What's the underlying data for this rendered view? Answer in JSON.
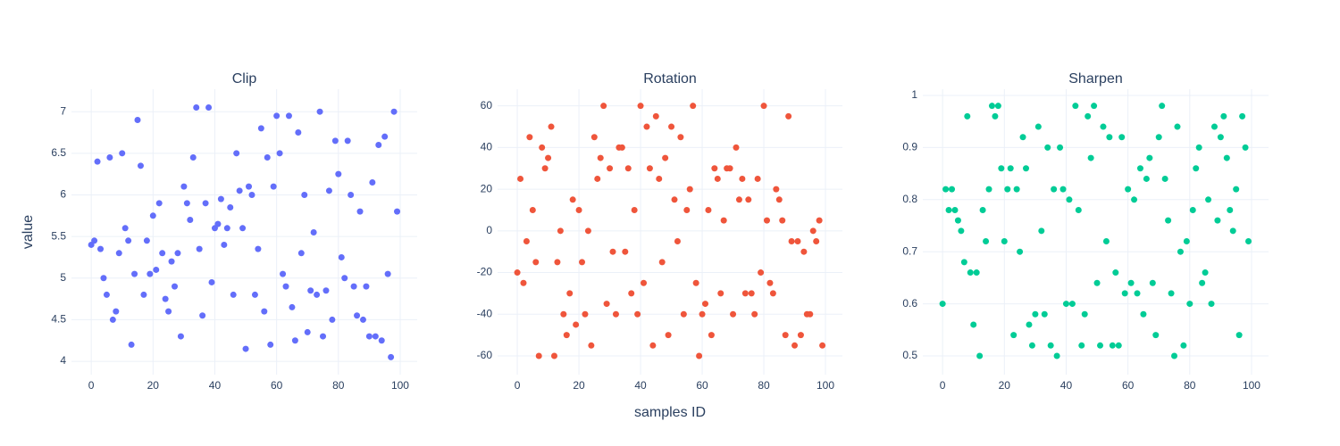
{
  "chart_data": [
    {
      "type": "scatter",
      "title": "Clip",
      "y_label": "value",
      "color": "#636efa",
      "x": [
        0,
        1,
        2,
        3,
        4,
        5,
        6,
        7,
        8,
        9,
        10,
        11,
        12,
        13,
        14,
        15,
        16,
        17,
        18,
        19,
        20,
        21,
        22,
        23,
        24,
        25,
        26,
        27,
        28,
        29,
        30,
        31,
        32,
        33,
        34,
        35,
        36,
        37,
        38,
        39,
        40,
        41,
        42,
        43,
        44,
        45,
        46,
        47,
        48,
        49,
        50,
        51,
        52,
        53,
        54,
        55,
        56,
        57,
        58,
        59,
        60,
        61,
        62,
        63,
        64,
        65,
        66,
        67,
        68,
        69,
        70,
        71,
        72,
        73,
        74,
        75,
        76,
        77,
        78,
        79,
        80,
        81,
        82,
        83,
        84,
        85,
        86,
        87,
        88,
        89,
        90,
        91,
        92,
        93,
        94,
        95,
        96,
        97,
        98,
        99
      ],
      "values": [
        5.4,
        5.45,
        6.4,
        5.35,
        5.0,
        4.8,
        6.45,
        4.5,
        4.6,
        5.3,
        6.5,
        5.6,
        5.45,
        4.2,
        5.05,
        6.9,
        6.35,
        4.8,
        5.45,
        5.05,
        5.75,
        5.1,
        5.9,
        5.3,
        4.75,
        4.6,
        5.2,
        4.9,
        5.3,
        4.3,
        6.1,
        5.9,
        5.7,
        6.45,
        7.05,
        5.35,
        4.55,
        5.9,
        7.05,
        4.95,
        5.6,
        5.65,
        5.95,
        5.4,
        5.6,
        5.85,
        4.8,
        6.5,
        6.05,
        5.6,
        4.15,
        6.1,
        6.0,
        4.8,
        5.35,
        6.8,
        4.6,
        6.45,
        4.2,
        6.1,
        6.95,
        6.5,
        5.05,
        4.9,
        6.95,
        4.65,
        4.25,
        6.75,
        5.3,
        6.0,
        4.35,
        4.85,
        5.55,
        4.8,
        7.0,
        4.3,
        4.85,
        6.05,
        4.5,
        6.65,
        6.25,
        5.25,
        5.0,
        6.65,
        6.0,
        4.9,
        4.55,
        5.8,
        4.5,
        4.9,
        4.3,
        6.15,
        4.3,
        6.6,
        4.25,
        6.7,
        5.05,
        4.05,
        7.0,
        5.8
      ],
      "xlim": [
        -6.4,
        105.5
      ],
      "ylim": [
        3.84,
        7.27
      ],
      "xticks": [
        0,
        20,
        40,
        60,
        80,
        100
      ],
      "yticks": [
        4,
        4.5,
        5,
        5.5,
        6,
        6.5,
        7
      ],
      "grid": true
    },
    {
      "type": "scatter",
      "title": "Rotation",
      "x_label": "samples ID",
      "color": "#ef553b",
      "x": [
        0,
        1,
        2,
        3,
        4,
        5,
        6,
        7,
        8,
        9,
        10,
        11,
        12,
        13,
        14,
        15,
        16,
        17,
        18,
        19,
        20,
        21,
        22,
        23,
        24,
        25,
        26,
        27,
        28,
        29,
        30,
        31,
        32,
        33,
        34,
        35,
        36,
        37,
        38,
        39,
        40,
        41,
        42,
        43,
        44,
        45,
        46,
        47,
        48,
        49,
        50,
        51,
        52,
        53,
        54,
        55,
        56,
        57,
        58,
        59,
        60,
        61,
        62,
        63,
        64,
        65,
        66,
        67,
        68,
        69,
        70,
        71,
        72,
        73,
        74,
        75,
        76,
        77,
        78,
        79,
        80,
        81,
        82,
        83,
        84,
        85,
        86,
        87,
        88,
        89,
        90,
        91,
        92,
        93,
        94,
        95,
        96,
        97,
        98,
        99
      ],
      "values": [
        -20,
        25,
        -25,
        -5,
        45,
        10,
        -15,
        -60,
        40,
        30,
        35,
        50,
        -60,
        -15,
        0,
        -40,
        -50,
        -30,
        15,
        -45,
        10,
        -15,
        -40,
        0,
        -55,
        45,
        25,
        35,
        60,
        -35,
        30,
        -10,
        -40,
        40,
        40,
        -10,
        30,
        -30,
        10,
        -40,
        60,
        -25,
        50,
        30,
        -55,
        55,
        25,
        -15,
        35,
        -50,
        50,
        15,
        -5,
        45,
        -40,
        10,
        20,
        60,
        -25,
        -60,
        -40,
        -35,
        10,
        -50,
        30,
        25,
        -30,
        5,
        30,
        30,
        -40,
        40,
        15,
        25,
        -30,
        15,
        -30,
        -40,
        25,
        -20,
        60,
        5,
        -25,
        -30,
        20,
        15,
        5,
        -50,
        55,
        -5,
        -55,
        -5,
        -50,
        -10,
        -40,
        -40,
        0,
        -5,
        5,
        -55
      ],
      "xlim": [
        -6.4,
        105.5
      ],
      "ylim": [
        -69,
        68
      ],
      "xticks": [
        0,
        20,
        40,
        60,
        80,
        100
      ],
      "yticks": [
        -60,
        -40,
        -20,
        0,
        20,
        40,
        60
      ],
      "grid": true
    },
    {
      "type": "scatter",
      "title": "Sharpen",
      "color": "#00cc96",
      "x": [
        0,
        1,
        2,
        3,
        4,
        5,
        6,
        7,
        8,
        9,
        10,
        11,
        12,
        13,
        14,
        15,
        16,
        17,
        18,
        19,
        20,
        21,
        22,
        23,
        24,
        25,
        26,
        27,
        28,
        29,
        30,
        31,
        32,
        33,
        34,
        35,
        36,
        37,
        38,
        39,
        40,
        41,
        42,
        43,
        44,
        45,
        46,
        47,
        48,
        49,
        50,
        51,
        52,
        53,
        54,
        55,
        56,
        57,
        58,
        59,
        60,
        61,
        62,
        63,
        64,
        65,
        66,
        67,
        68,
        69,
        70,
        71,
        72,
        73,
        74,
        75,
        76,
        77,
        78,
        79,
        80,
        81,
        82,
        83,
        84,
        85,
        86,
        87,
        88,
        89,
        90,
        91,
        92,
        93,
        94,
        95,
        96,
        97,
        98,
        99
      ],
      "values": [
        0.6,
        0.82,
        0.78,
        0.82,
        0.78,
        0.76,
        0.74,
        0.68,
        0.96,
        0.66,
        0.56,
        0.66,
        0.5,
        0.78,
        0.72,
        0.82,
        0.98,
        0.96,
        0.98,
        0.86,
        0.72,
        0.82,
        0.86,
        0.54,
        0.82,
        0.7,
        0.92,
        0.86,
        0.56,
        0.52,
        0.58,
        0.94,
        0.74,
        0.58,
        0.9,
        0.52,
        0.82,
        0.5,
        0.9,
        0.82,
        0.6,
        0.8,
        0.6,
        0.98,
        0.78,
        0.52,
        0.58,
        0.96,
        0.88,
        0.98,
        0.64,
        0.52,
        0.94,
        0.72,
        0.92,
        0.52,
        0.66,
        0.52,
        0.92,
        0.62,
        0.82,
        0.64,
        0.8,
        0.62,
        0.86,
        0.58,
        0.84,
        0.88,
        0.64,
        0.54,
        0.92,
        0.98,
        0.84,
        0.76,
        0.62,
        0.5,
        0.94,
        0.7,
        0.52,
        0.72,
        0.6,
        0.78,
        0.86,
        0.9,
        0.64,
        0.66,
        0.8,
        0.6,
        0.94,
        0.76,
        0.92,
        0.96,
        0.88,
        0.78,
        0.74,
        0.82,
        0.54,
        0.96,
        0.9,
        0.72
      ],
      "xlim": [
        -6.4,
        105.5
      ],
      "ylim": [
        0.464,
        1.012
      ],
      "xticks": [
        0,
        20,
        40,
        60,
        80,
        100
      ],
      "yticks": [
        0.5,
        0.6,
        0.7,
        0.8,
        0.9,
        1
      ],
      "grid": true
    }
  ]
}
